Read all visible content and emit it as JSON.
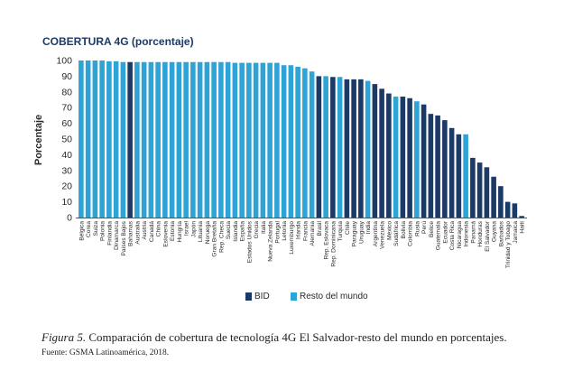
{
  "figure": {
    "caption_label": "Figura 5.",
    "caption_text": " Comparación de cobertura de tecnología 4G El Salvador-resto del mundo en porcentajes.",
    "source": "Fuente: GSMA Latinoamérica, 2018."
  },
  "colors": {
    "bid": "#1b3a66",
    "rest": "#2ea3d5",
    "axis": "#555555",
    "text": "#2a2a2a"
  },
  "chart_data": {
    "type": "bar",
    "title": "COBERTURA 4G (porcentaje)",
    "xlabel": "",
    "ylabel": "Porcentaje",
    "ylim": [
      0,
      100
    ],
    "yticks": [
      0,
      10,
      20,
      30,
      40,
      50,
      60,
      70,
      80,
      90,
      100
    ],
    "legend": [
      {
        "key": "bid",
        "label": "BID"
      },
      {
        "key": "rest",
        "label": "Resto del mundo"
      }
    ],
    "categories": [
      "Bélgica",
      "Corea",
      "Suiza",
      "Polonia",
      "Finlandia",
      "Dinamarca",
      "Países Bajos",
      "Bahamas",
      "Australia",
      "Austria",
      "Canadá",
      "China",
      "Eslovenia",
      "Estonia",
      "Hungría",
      "Israel",
      "Japón",
      "Lituania",
      "Noruega",
      "Gran Bretaña",
      "Rep. Checa",
      "Suecia",
      "Islandia",
      "España",
      "Estados Unidos",
      "Grecia",
      "Italia",
      "Nueva Zelanda",
      "Portugal",
      "Letonia",
      "Luxemburgo",
      "Irlanda",
      "Francia",
      "Alemania",
      "Brasil",
      "Rep. Eslovaca",
      "Rep. Dominicana",
      "Turquía",
      "Chile",
      "Paraguay",
      "Uruguay",
      "India",
      "Argentina",
      "Venezuela",
      "México",
      "Sudáfrica",
      "Bolivia",
      "Colombia",
      "Rusia",
      "Perú",
      "Belice",
      "Guatemala",
      "Ecuador",
      "Costa Rica",
      "Nicaragua",
      "Indonesia",
      "Panamá",
      "Honduras",
      "El Salvador",
      "Guyana",
      "Barbados",
      "Trinidad y Tobago",
      "Jamaica",
      "Haití"
    ],
    "values": [
      100,
      100,
      100,
      100,
      99.5,
      99.5,
      99,
      99,
      99,
      99,
      99,
      99,
      99,
      99,
      99,
      99,
      99,
      99,
      99,
      99,
      99,
      99,
      98.5,
      98.5,
      98.5,
      98.5,
      98.5,
      98.5,
      98.5,
      97,
      97,
      96,
      95,
      93,
      90,
      90,
      89.5,
      89.5,
      88,
      88,
      88,
      87,
      85,
      82,
      79,
      77,
      77,
      76,
      74,
      72,
      66,
      65,
      62,
      57,
      53,
      53,
      38,
      35,
      32,
      26,
      20,
      10,
      9,
      1
    ],
    "groups": [
      "rest",
      "rest",
      "rest",
      "rest",
      "rest",
      "rest",
      "rest",
      "bid",
      "rest",
      "rest",
      "rest",
      "rest",
      "rest",
      "rest",
      "rest",
      "rest",
      "rest",
      "rest",
      "rest",
      "rest",
      "rest",
      "rest",
      "rest",
      "rest",
      "rest",
      "rest",
      "rest",
      "rest",
      "rest",
      "rest",
      "rest",
      "rest",
      "rest",
      "rest",
      "bid",
      "rest",
      "bid",
      "rest",
      "bid",
      "bid",
      "bid",
      "rest",
      "bid",
      "bid",
      "bid",
      "rest",
      "bid",
      "bid",
      "rest",
      "bid",
      "bid",
      "bid",
      "bid",
      "bid",
      "bid",
      "rest",
      "bid",
      "bid",
      "bid",
      "bid",
      "bid",
      "bid",
      "bid",
      "bid"
    ]
  }
}
